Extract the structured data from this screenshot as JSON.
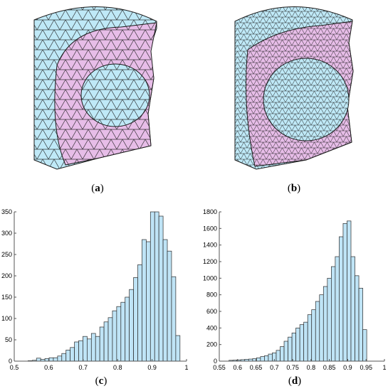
{
  "captions": {
    "a": {
      "open": "(",
      "letter": "a",
      "close": ")"
    },
    "b": {
      "open": "(",
      "letter": "b",
      "close": ")"
    },
    "c": {
      "open": "(",
      "letter": "c",
      "close": ")"
    },
    "d": {
      "open": "(",
      "letter": "d",
      "close": ")"
    }
  },
  "colors": {
    "mesh_outer": "#bfe9f7",
    "mesh_ring": "#e7bde8",
    "mesh_core": "#bfe9f7",
    "mesh_edge": "#1a1a1a",
    "bar_fill": "#bfe4f6",
    "bar_edge": "#2a2a2a",
    "axis": "#555555"
  },
  "chart_data": [
    {
      "id": "c",
      "type": "bar",
      "title": "",
      "xlabel": "",
      "ylabel": "",
      "xlim": [
        0.5,
        1.0
      ],
      "ylim": [
        0,
        350
      ],
      "xticks": [
        "0.5",
        "0.6",
        "0.7",
        "0.8",
        "0.9",
        "1"
      ],
      "yticks": [
        "0",
        "50",
        "100",
        "150",
        "200",
        "250",
        "300",
        "350"
      ],
      "bin_start": 0.54,
      "bin_width": 0.01225,
      "values": [
        1,
        2,
        7,
        4,
        6,
        8,
        8,
        12,
        18,
        26,
        32,
        45,
        48,
        58,
        52,
        65,
        58,
        80,
        92,
        102,
        118,
        128,
        138,
        150,
        168,
        196,
        226,
        285,
        280,
        350,
        350,
        340,
        285,
        258,
        198,
        60
      ]
    },
    {
      "id": "d",
      "type": "bar",
      "title": "",
      "xlabel": "",
      "ylabel": "",
      "xlim": [
        0.55,
        1.0
      ],
      "ylim": [
        0,
        1800
      ],
      "xticks": [
        "0.55",
        "0.6",
        "0.65",
        "0.7",
        "0.75",
        "0.8",
        "0.85",
        "0.9",
        "0.95",
        "1"
      ],
      "yticks": [
        "0",
        "200",
        "400",
        "600",
        "800",
        "1000",
        "1200",
        "1400",
        "1600",
        "1800"
      ],
      "bin_start": 0.5765,
      "bin_width": 0.01072,
      "values": [
        10,
        12,
        15,
        18,
        22,
        25,
        30,
        40,
        55,
        65,
        85,
        100,
        130,
        175,
        240,
        290,
        340,
        400,
        440,
        470,
        560,
        620,
        720,
        800,
        900,
        1000,
        1140,
        1260,
        1500,
        1660,
        1690,
        1260,
        1030,
        880,
        380
      ]
    }
  ]
}
